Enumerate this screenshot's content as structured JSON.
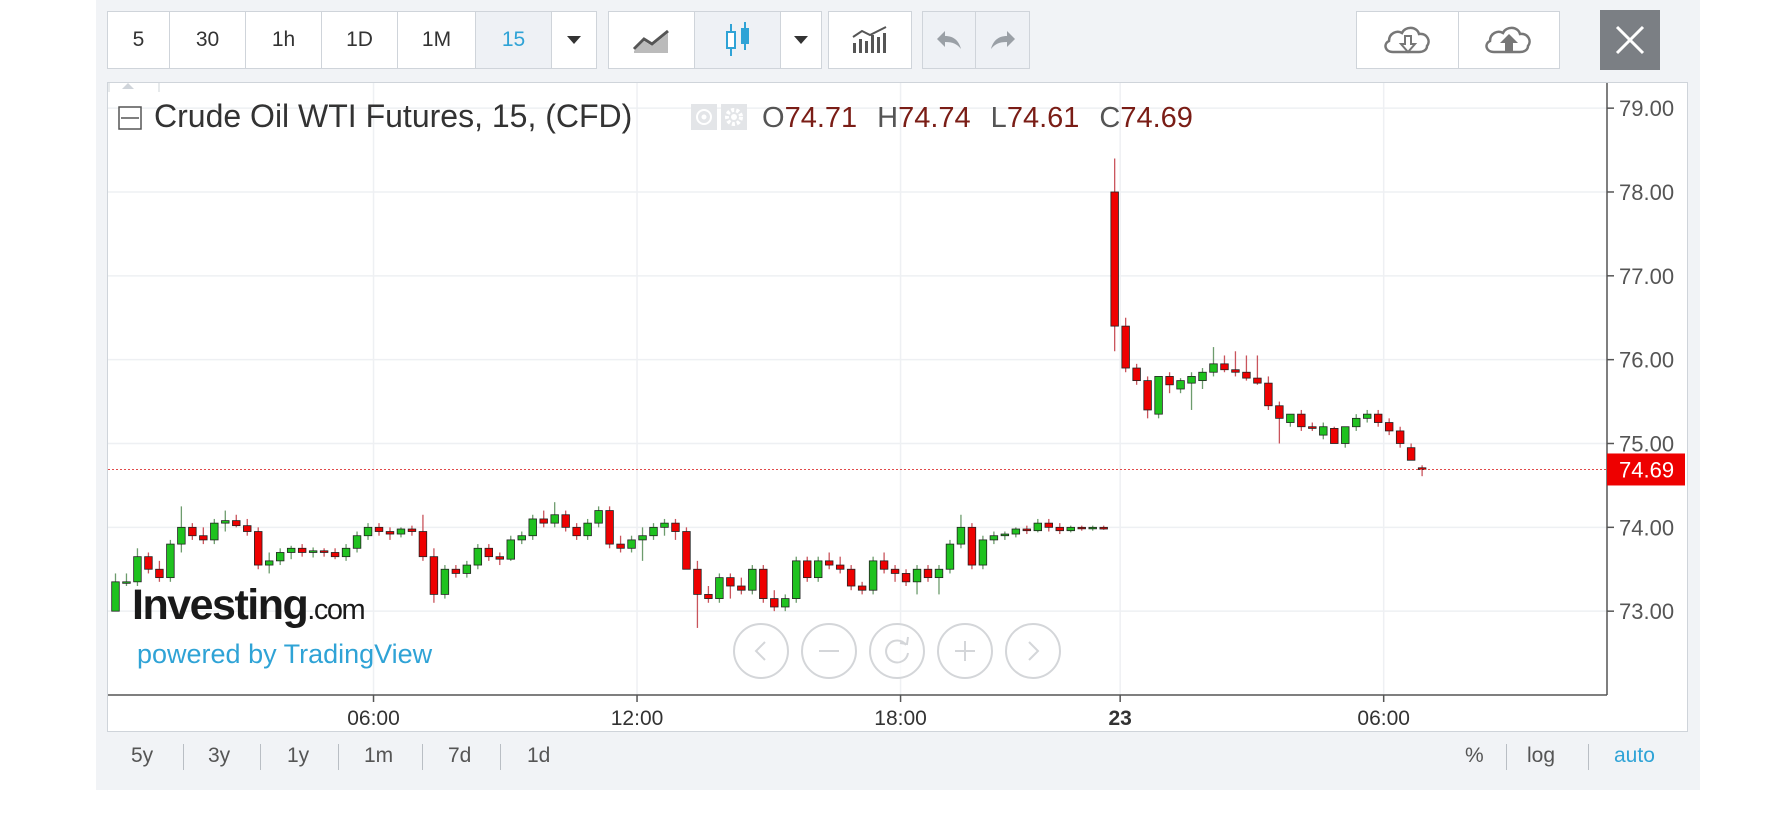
{
  "toolbar": {
    "intervals": [
      "5",
      "30",
      "1h",
      "1D",
      "1M",
      "15"
    ],
    "active_interval": "15"
  },
  "legend": {
    "title": "Crude Oil WTI Futures, 15, (CFD)",
    "o_label": "O",
    "o_value": "74.71",
    "h_label": "H",
    "h_value": "74.74",
    "l_label": "L",
    "l_value": "74.61",
    "c_label": "C",
    "c_value": "74.69"
  },
  "watermark": {
    "logo_main": "Investing",
    "logo_suffix": ".com",
    "powered_by": "powered by TradingView"
  },
  "footer": {
    "ranges": [
      "5y",
      "3y",
      "1y",
      "1m",
      "7d",
      "1d"
    ],
    "scale_options": [
      "%",
      "log",
      "auto"
    ],
    "active_scale": "auto"
  },
  "colors": {
    "up": "#1fc21f",
    "down": "#ee0000",
    "accent": "#2fa3d6",
    "grid": "#eef0f3"
  },
  "chart_data": {
    "type": "candlestick",
    "title": "Crude Oil WTI Futures, 15, (CFD)",
    "price_label": "74.69",
    "ylim": [
      72.0,
      79.3
    ],
    "y_ticks": [
      "79.00",
      "78.00",
      "77.00",
      "76.00",
      "75.00",
      "74.00",
      "73.00"
    ],
    "x_ticks": [
      {
        "label": "06:00",
        "t": 24,
        "bold": false
      },
      {
        "label": "12:00",
        "t": 48,
        "bold": false
      },
      {
        "label": "18:00",
        "t": 72,
        "bold": false
      },
      {
        "label": "23",
        "t": 92,
        "bold": true
      },
      {
        "label": "06:00",
        "t": 116,
        "bold": false
      }
    ],
    "candles": [
      [
        73.0,
        73.45,
        73.0,
        73.35
      ],
      [
        73.35,
        73.45,
        73.3,
        73.35
      ],
      [
        73.35,
        73.75,
        73.3,
        73.65
      ],
      [
        73.65,
        73.7,
        73.45,
        73.5
      ],
      [
        73.5,
        73.6,
        73.35,
        73.4
      ],
      [
        73.4,
        73.85,
        73.35,
        73.8
      ],
      [
        73.8,
        74.25,
        73.7,
        74.0
      ],
      [
        74.0,
        74.05,
        73.85,
        73.9
      ],
      [
        73.9,
        74.0,
        73.8,
        73.85
      ],
      [
        73.85,
        74.1,
        73.8,
        74.05
      ],
      [
        74.05,
        74.2,
        73.95,
        74.08
      ],
      [
        74.08,
        74.15,
        74.0,
        74.02
      ],
      [
        74.02,
        74.1,
        73.9,
        73.95
      ],
      [
        73.95,
        74.0,
        73.5,
        73.55
      ],
      [
        73.55,
        73.7,
        73.45,
        73.6
      ],
      [
        73.6,
        73.75,
        73.55,
        73.7
      ],
      [
        73.7,
        73.78,
        73.62,
        73.75
      ],
      [
        73.75,
        73.8,
        73.65,
        73.7
      ],
      [
        73.7,
        73.76,
        73.64,
        73.72
      ],
      [
        73.72,
        73.75,
        73.65,
        73.7
      ],
      [
        73.7,
        73.75,
        73.62,
        73.65
      ],
      [
        73.65,
        73.8,
        73.6,
        73.75
      ],
      [
        73.75,
        73.95,
        73.7,
        73.9
      ],
      [
        73.9,
        74.05,
        73.85,
        74.0
      ],
      [
        74.0,
        74.05,
        73.9,
        73.95
      ],
      [
        73.95,
        74.0,
        73.85,
        73.92
      ],
      [
        73.92,
        74.0,
        73.88,
        73.98
      ],
      [
        73.98,
        74.02,
        73.9,
        73.95
      ],
      [
        73.95,
        74.15,
        73.6,
        73.65
      ],
      [
        73.65,
        73.75,
        73.1,
        73.2
      ],
      [
        73.2,
        73.55,
        73.15,
        73.5
      ],
      [
        73.5,
        73.55,
        73.4,
        73.45
      ],
      [
        73.45,
        73.6,
        73.4,
        73.55
      ],
      [
        73.55,
        73.8,
        73.5,
        73.75
      ],
      [
        73.75,
        73.8,
        73.6,
        73.65
      ],
      [
        73.65,
        73.7,
        73.55,
        73.62
      ],
      [
        73.62,
        73.9,
        73.6,
        73.85
      ],
      [
        73.85,
        73.95,
        73.8,
        73.9
      ],
      [
        73.9,
        74.15,
        73.85,
        74.1
      ],
      [
        74.1,
        74.2,
        74.0,
        74.05
      ],
      [
        74.05,
        74.3,
        74.0,
        74.15
      ],
      [
        74.15,
        74.2,
        73.95,
        74.0
      ],
      [
        74.0,
        74.05,
        73.85,
        73.9
      ],
      [
        73.9,
        74.1,
        73.85,
        74.05
      ],
      [
        74.05,
        74.25,
        74.0,
        74.2
      ],
      [
        74.2,
        74.25,
        73.75,
        73.8
      ],
      [
        73.8,
        73.9,
        73.7,
        73.75
      ],
      [
        73.75,
        73.9,
        73.7,
        73.85
      ],
      [
        73.85,
        74.0,
        73.6,
        73.9
      ],
      [
        73.9,
        74.05,
        73.85,
        74.0
      ],
      [
        74.0,
        74.1,
        73.9,
        74.05
      ],
      [
        74.05,
        74.1,
        73.85,
        73.95
      ],
      [
        73.95,
        74.0,
        73.5,
        73.5
      ],
      [
        73.5,
        73.6,
        72.8,
        73.2
      ],
      [
        73.2,
        73.3,
        73.1,
        73.15
      ],
      [
        73.15,
        73.45,
        73.1,
        73.4
      ],
      [
        73.4,
        73.45,
        73.15,
        73.3
      ],
      [
        73.3,
        73.4,
        73.2,
        73.25
      ],
      [
        73.25,
        73.55,
        73.2,
        73.5
      ],
      [
        73.5,
        73.55,
        73.1,
        73.15
      ],
      [
        73.15,
        73.25,
        73.0,
        73.05
      ],
      [
        73.05,
        73.2,
        73.0,
        73.15
      ],
      [
        73.15,
        73.65,
        73.1,
        73.6
      ],
      [
        73.6,
        73.65,
        73.35,
        73.4
      ],
      [
        73.4,
        73.65,
        73.35,
        73.6
      ],
      [
        73.6,
        73.7,
        73.5,
        73.55
      ],
      [
        73.55,
        73.65,
        73.45,
        73.5
      ],
      [
        73.5,
        73.55,
        73.25,
        73.3
      ],
      [
        73.3,
        73.35,
        73.2,
        73.25
      ],
      [
        73.25,
        73.65,
        73.2,
        73.6
      ],
      [
        73.6,
        73.7,
        73.45,
        73.5
      ],
      [
        73.5,
        73.55,
        73.35,
        73.45
      ],
      [
        73.45,
        73.5,
        73.3,
        73.35
      ],
      [
        73.35,
        73.55,
        73.2,
        73.5
      ],
      [
        73.5,
        73.55,
        73.35,
        73.4
      ],
      [
        73.4,
        73.55,
        73.2,
        73.5
      ],
      [
        73.5,
        73.85,
        73.45,
        73.8
      ],
      [
        73.8,
        74.15,
        73.75,
        74.0
      ],
      [
        74.0,
        74.05,
        73.5,
        73.55
      ],
      [
        73.55,
        73.9,
        73.5,
        73.85
      ],
      [
        73.85,
        73.95,
        73.8,
        73.9
      ],
      [
        73.9,
        73.95,
        73.85,
        73.92
      ],
      [
        73.92,
        74.0,
        73.88,
        73.98
      ],
      [
        73.98,
        74.02,
        73.92,
        73.96
      ],
      [
        73.96,
        74.1,
        73.94,
        74.05
      ],
      [
        74.05,
        74.1,
        73.95,
        74.0
      ],
      [
        74.0,
        74.05,
        73.92,
        73.96
      ],
      [
        73.96,
        74.02,
        73.94,
        74.0
      ],
      [
        74.0,
        74.02,
        73.96,
        73.99
      ],
      [
        73.99,
        74.02,
        73.96,
        74.0
      ],
      [
        74.0,
        74.02,
        73.97,
        73.98
      ],
      [
        78.0,
        78.4,
        76.1,
        76.4
      ],
      [
        76.4,
        76.5,
        75.85,
        75.9
      ],
      [
        75.9,
        75.95,
        75.7,
        75.75
      ],
      [
        75.75,
        75.8,
        75.3,
        75.4
      ],
      [
        75.35,
        75.8,
        75.3,
        75.8
      ],
      [
        75.8,
        75.85,
        75.6,
        75.7
      ],
      [
        75.65,
        75.78,
        75.6,
        75.75
      ],
      [
        75.72,
        75.85,
        75.4,
        75.8
      ],
      [
        75.75,
        75.9,
        75.65,
        75.85
      ],
      [
        75.85,
        76.15,
        75.8,
        75.95
      ],
      [
        75.95,
        76.05,
        75.85,
        75.88
      ],
      [
        75.88,
        76.1,
        75.8,
        75.85
      ],
      [
        75.85,
        76.05,
        75.75,
        75.78
      ],
      [
        75.78,
        76.05,
        75.7,
        75.72
      ],
      [
        75.72,
        75.8,
        75.4,
        75.45
      ],
      [
        75.45,
        75.5,
        75.0,
        75.3
      ],
      [
        75.25,
        75.35,
        75.2,
        75.35
      ],
      [
        75.35,
        75.4,
        75.15,
        75.2
      ],
      [
        75.2,
        75.25,
        75.15,
        75.18
      ],
      [
        75.1,
        75.25,
        75.05,
        75.2
      ],
      [
        75.18,
        75.2,
        75.0,
        75.0
      ],
      [
        75.0,
        75.2,
        74.95,
        75.2
      ],
      [
        75.2,
        75.35,
        75.15,
        75.3
      ],
      [
        75.3,
        75.4,
        75.25,
        75.35
      ],
      [
        75.35,
        75.4,
        75.2,
        75.25
      ],
      [
        75.25,
        75.3,
        75.1,
        75.15
      ],
      [
        75.15,
        75.2,
        74.95,
        75.0
      ],
      [
        74.95,
        75.0,
        74.8,
        74.8
      ],
      [
        74.71,
        74.74,
        74.61,
        74.69
      ]
    ]
  }
}
